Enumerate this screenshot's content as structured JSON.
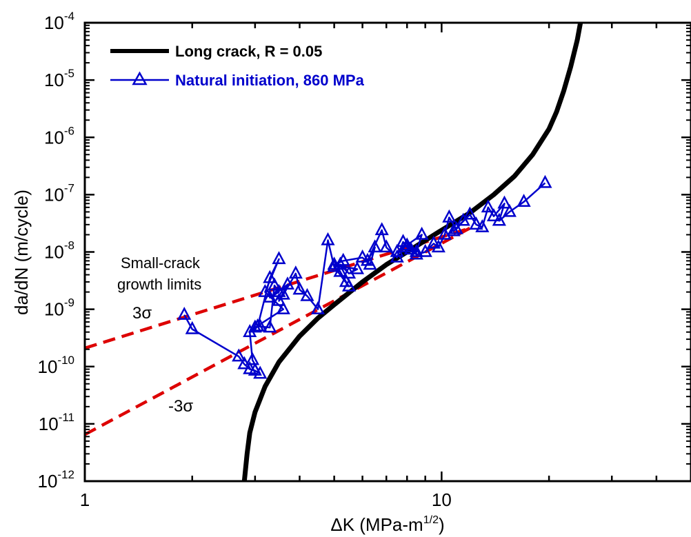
{
  "chart_data": {
    "type": "line",
    "xscale": "log",
    "yscale": "log",
    "xlim": [
      1,
      50
    ],
    "ylim": [
      1e-12,
      0.0001
    ],
    "xlabel": "ΔK  (MPa-m",
    "xlabel_sup": "1/2",
    "xlabel_end": ")",
    "ylabel": "da/dN  (m/cycle)",
    "x_tick_labels": [
      {
        "value": 1,
        "label": "1"
      },
      {
        "value": 10,
        "label": "10"
      }
    ],
    "y_tick_labels": [
      {
        "value": 0.0001,
        "base": "10",
        "exp": "-4"
      },
      {
        "value": 1e-05,
        "base": "10",
        "exp": "-5"
      },
      {
        "value": 1e-06,
        "base": "10",
        "exp": "-6"
      },
      {
        "value": 1e-07,
        "base": "10",
        "exp": "-7"
      },
      {
        "value": 1e-08,
        "base": "10",
        "exp": "-8"
      },
      {
        "value": 1e-09,
        "base": "10",
        "exp": "-9"
      },
      {
        "value": 1e-10,
        "base": "10",
        "exp": "-10"
      },
      {
        "value": 1e-11,
        "base": "10",
        "exp": "-11"
      },
      {
        "value": 1e-12,
        "base": "10",
        "exp": "-12"
      }
    ],
    "grid": false,
    "legend_position": "top-left",
    "series": [
      {
        "name": "Long crack, R = 0.05",
        "color": "#000000",
        "style": "solid-thick",
        "x": [
          2.8,
          2.85,
          2.9,
          3.0,
          3.2,
          3.5,
          4.0,
          4.5,
          5.0,
          6.0,
          7.0,
          8.0,
          10.0,
          12.0,
          14.0,
          16.0,
          18.0,
          20.0,
          21.0,
          22.0,
          23.0,
          24.0,
          24.5
        ],
        "y": [
          1e-12,
          3e-12,
          7e-12,
          1.6e-11,
          4.5e-11,
          1.2e-10,
          3.4e-10,
          7e-10,
          1.2e-09,
          3e-09,
          6e-09,
          1e-08,
          2.4e-08,
          4.8e-08,
          1e-07,
          2.1e-07,
          5e-07,
          1.4e-06,
          2.8e-06,
          6.5e-06,
          1.7e-05,
          5e-05,
          0.0001
        ]
      },
      {
        "name": "Natural initiation, 860 MPa",
        "color": "#0000cc",
        "marker": "triangle",
        "style": "solid-thin",
        "x": [
          1.9,
          2.0,
          2.7,
          2.8,
          2.9,
          3.0,
          3.1,
          2.95,
          2.9,
          3.05,
          3.3,
          3.5,
          3.2,
          3.6,
          3.0,
          3.05,
          3.1,
          3.3,
          3.4,
          3.5,
          3.3,
          3.7,
          3.5,
          3.6,
          3.9,
          4.0,
          4.2,
          4.5,
          4.8,
          5.0,
          5.2,
          5.4,
          5.5,
          5.0,
          5.2,
          5.5,
          5.8,
          5.0,
          5.3,
          6.0,
          6.3,
          6.5,
          6.2,
          6.8,
          7.0,
          7.5,
          7.8,
          8.0,
          8.5,
          8.8,
          7.5,
          8.0,
          8.2,
          8.5,
          9.0,
          9.5,
          9.8,
          10.2,
          10.5,
          11.0,
          11.5,
          10.8,
          12.0,
          12.5,
          13.0,
          13.5,
          14.0,
          15.0,
          14.5,
          15.5,
          17.0,
          19.5
        ],
        "y": [
          8e-10,
          4.5e-10,
          1.5e-10,
          1.1e-10,
          9e-11,
          8.5e-11,
          7.5e-11,
          1.3e-10,
          4e-10,
          5e-10,
          3.5e-09,
          7.5e-09,
          2e-09,
          1e-09,
          4.8e-10,
          5e-10,
          5e-10,
          4.8e-10,
          2.6e-09,
          2e-09,
          1.6e-09,
          2.7e-09,
          1.4e-09,
          1.8e-09,
          4.2e-09,
          2.2e-09,
          1.7e-09,
          1e-09,
          1.6e-08,
          5.5e-09,
          4.5e-09,
          3e-09,
          2.5e-09,
          5.5e-09,
          6e-09,
          4.2e-09,
          5e-09,
          6e-09,
          7e-09,
          8e-09,
          6e-09,
          1.2e-08,
          7e-09,
          2.4e-08,
          1.2e-08,
          8e-09,
          1.5e-08,
          1.2e-08,
          1e-08,
          2e-08,
          1e-08,
          1.3e-08,
          1.1e-08,
          9e-09,
          1e-08,
          1.4e-08,
          1.2e-08,
          2e-08,
          4e-08,
          2.5e-08,
          3.5e-08,
          2.3e-08,
          4.5e-08,
          3e-08,
          2.7e-08,
          6e-08,
          4.2e-08,
          7e-08,
          3.5e-08,
          5e-08,
          7.5e-08,
          1.6e-07
        ]
      },
      {
        "name": "3σ",
        "color": "#dd0000",
        "style": "dashed",
        "x": [
          1.0,
          12.0
        ],
        "y": [
          2.1e-10,
          2.6e-08
        ]
      },
      {
        "name": "-3σ",
        "color": "#dd0000",
        "style": "dashed",
        "x": [
          1.0,
          12.0
        ],
        "y": [
          6.5e-12,
          2.6e-08
        ]
      }
    ],
    "legend": [
      {
        "label": "Long crack, R = 0.05",
        "color": "#000000"
      },
      {
        "label": "Natural initiation, 860 MPa",
        "color": "#0000cc"
      }
    ],
    "annotations": {
      "limits_line1": "Small-crack",
      "limits_line2": "growth limits",
      "upper": "3σ",
      "lower": "-3σ"
    }
  }
}
